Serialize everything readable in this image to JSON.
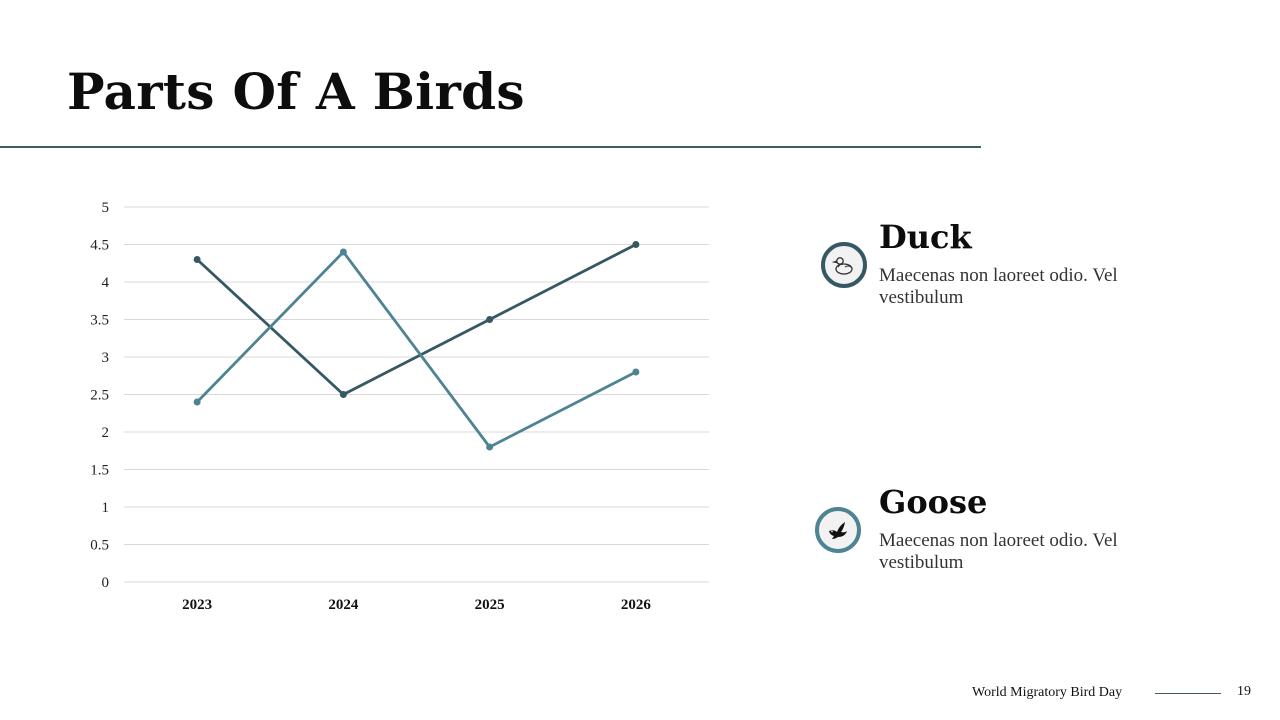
{
  "slide": {
    "title": "Parts Of A Birds",
    "footer_text": "World Migratory Bird Day",
    "page_number": "19"
  },
  "items": [
    {
      "title": "Duck",
      "text": "Maecenas non laoreet odio. Vel vestibulum",
      "icon": "duck-icon",
      "ring_color": "#355862"
    },
    {
      "title": "Goose",
      "text": "Maecenas non laoreet odio. Vel vestibulum",
      "icon": "dove-icon",
      "ring_color": "#4e8391"
    }
  ],
  "chart_data": {
    "type": "line",
    "categories": [
      "2023",
      "2024",
      "2025",
      "2026"
    ],
    "yticks": [
      "0",
      "0.5",
      "1",
      "1.5",
      "2",
      "2.5",
      "3",
      "3.5",
      "4",
      "4.5",
      "5"
    ],
    "ylim": [
      0,
      5
    ],
    "grid": true,
    "series": [
      {
        "values": [
          4.3,
          2.5,
          3.5,
          4.5
        ],
        "color": "#355862"
      },
      {
        "values": [
          2.4,
          4.4,
          1.8,
          2.8
        ],
        "color": "#4e8391"
      }
    ]
  }
}
